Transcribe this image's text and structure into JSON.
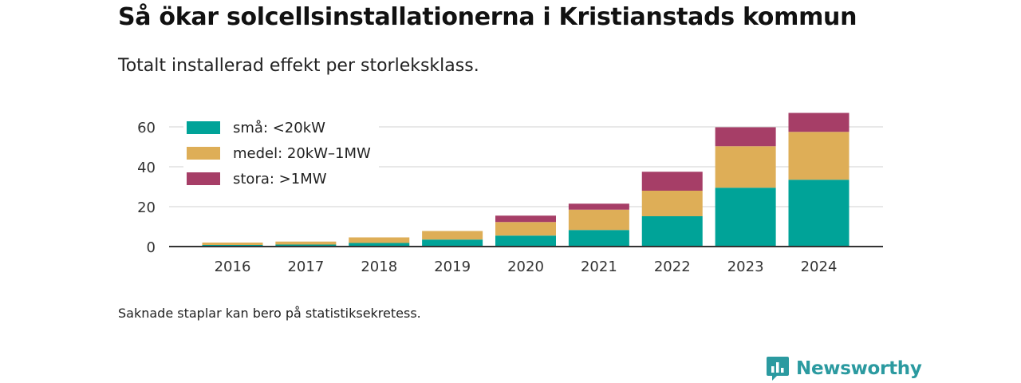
{
  "header": {
    "title": "Så ökar solcellsinstallationerna i Kristianstads kommun",
    "subtitle": "Totalt installerad effekt per storleksklass."
  },
  "footer": {
    "note": "Saknade staplar kan bero på statistiksekretess.",
    "brand": "Newsworthy"
  },
  "colors": {
    "small": "#00a398",
    "medium": "#deae57",
    "large": "#a63e67",
    "grid": "#d9d9d9",
    "axis": "#333333",
    "brand": "#2b9aa0"
  },
  "chart_data": {
    "type": "bar",
    "stacked": true,
    "categories": [
      "2016",
      "2017",
      "2018",
      "2019",
      "2020",
      "2021",
      "2022",
      "2023",
      "2024"
    ],
    "series": [
      {
        "name": "små: <20kW",
        "values": [
          0.8,
          1.0,
          1.8,
          3.5,
          5.5,
          8.3,
          15.2,
          29.5,
          33.5
        ]
      },
      {
        "name": "medel: 20kW–1MW",
        "values": [
          1.2,
          1.5,
          2.8,
          4.3,
          6.8,
          10.2,
          12.8,
          20.8,
          24.0
        ]
      },
      {
        "name": "stora: >1MW",
        "values": [
          0,
          0,
          0,
          0,
          3.2,
          3.0,
          9.5,
          9.5,
          9.5
        ]
      }
    ],
    "yticks": [
      0,
      20,
      40,
      60
    ],
    "ylim": [
      0,
      68
    ],
    "grid": true,
    "legend_position": "top-left"
  }
}
